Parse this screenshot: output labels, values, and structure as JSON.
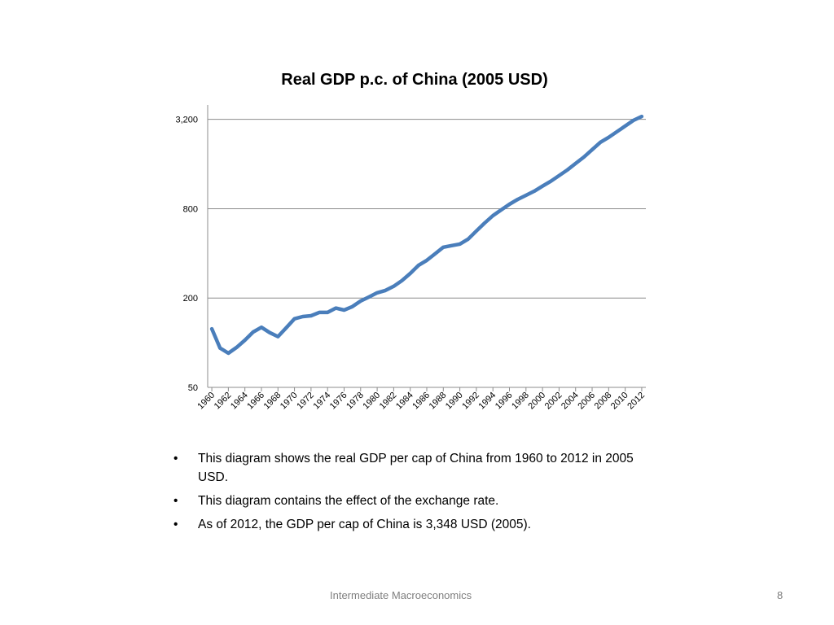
{
  "chart_data": {
    "type": "line",
    "title": "Real GDP p.c. of China (2005 USD)",
    "x": [
      1960,
      1961,
      1962,
      1963,
      1964,
      1965,
      1966,
      1967,
      1968,
      1969,
      1970,
      1971,
      1972,
      1973,
      1974,
      1975,
      1976,
      1977,
      1978,
      1979,
      1980,
      1981,
      1982,
      1983,
      1984,
      1985,
      1986,
      1987,
      1988,
      1989,
      1990,
      1991,
      1992,
      1993,
      1994,
      1995,
      1996,
      1997,
      1998,
      1999,
      2000,
      2001,
      2002,
      2003,
      2004,
      2005,
      2006,
      2007,
      2008,
      2009,
      2010,
      2011,
      2012
    ],
    "series": [
      {
        "name": "Real GDP p.c.",
        "color": "#4a7ebb",
        "values": [
          124,
          92,
          85,
          93,
          104,
          118,
          127,
          117,
          110,
          126,
          145,
          150,
          152,
          160,
          160,
          171,
          166,
          175,
          191,
          203,
          217,
          225,
          240,
          262,
          293,
          332,
          359,
          397,
          440,
          451,
          462,
          499,
          566,
          641,
          718,
          785,
          857,
          925,
          985,
          1050,
          1135,
          1225,
          1337,
          1461,
          1614,
          1783,
          2000,
          2243,
          2421,
          2642,
          2883,
          3150,
          3348
        ]
      }
    ],
    "xlim": [
      1959.5,
      2012.5
    ],
    "xticks": [
      1960,
      1962,
      1964,
      1966,
      1968,
      1970,
      1972,
      1974,
      1976,
      1978,
      1980,
      1982,
      1984,
      1986,
      1988,
      1990,
      1992,
      1994,
      1996,
      1998,
      2000,
      2002,
      2004,
      2006,
      2008,
      2010,
      2012
    ],
    "ylim": [
      50,
      4000
    ],
    "yticks": [
      50,
      200,
      800,
      {
        "value": 3200,
        "label": "3,200"
      }
    ],
    "log_y": true,
    "grid": true
  },
  "bullets": [
    "This diagram shows the real GDP per cap of China from 1960 to 2012 in 2005 USD.",
    "This diagram contains the effect of the exchange rate.",
    "As of 2012, the GDP per cap of China is 3,348 USD (2005)."
  ],
  "footer": {
    "text": "Intermediate Macroeconomics",
    "page": "8"
  }
}
